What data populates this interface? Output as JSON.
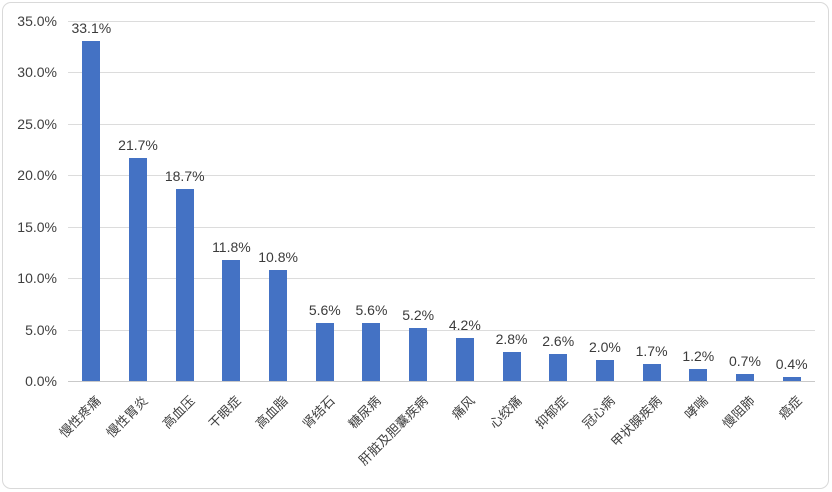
{
  "chart_data": {
    "type": "bar",
    "title": "",
    "xlabel": "",
    "ylabel": "",
    "ylim": [
      0,
      35
    ],
    "grid": true,
    "legend": "none",
    "bar_color": "#4472C4",
    "gridline_color": "#DCDCDC",
    "text_color": "#3F3F3F",
    "categories": [
      "慢性疼痛",
      "慢性胃炎",
      "高血压",
      "干眼症",
      "高血脂",
      "肾结石",
      "糖尿病",
      "肝脏及胆囊疾病",
      "痛风",
      "心绞痛",
      "抑郁症",
      "冠心病",
      "甲状腺疾病",
      "哮喘",
      "慢阻肺",
      "癌症"
    ],
    "values": [
      33.1,
      21.7,
      18.7,
      11.8,
      10.8,
      5.6,
      5.6,
      5.2,
      4.2,
      2.8,
      2.6,
      2.0,
      1.7,
      1.2,
      0.7,
      0.4
    ],
    "data_labels": [
      "33.1%",
      "21.7%",
      "18.7%",
      "11.8%",
      "10.8%",
      "5.6%",
      "5.6%",
      "5.2%",
      "4.2%",
      "2.8%",
      "2.6%",
      "2.0%",
      "1.7%",
      "1.2%",
      "0.7%",
      "0.4%"
    ],
    "yticks": [
      {
        "value": 0,
        "label": "0.0%"
      },
      {
        "value": 5,
        "label": "5.0%"
      },
      {
        "value": 10,
        "label": "10.0%"
      },
      {
        "value": 15,
        "label": "15.0%"
      },
      {
        "value": 20,
        "label": "20.0%"
      },
      {
        "value": 25,
        "label": "25.0%"
      },
      {
        "value": 30,
        "label": "30.0%"
      },
      {
        "value": 35,
        "label": "35.0%"
      }
    ]
  }
}
